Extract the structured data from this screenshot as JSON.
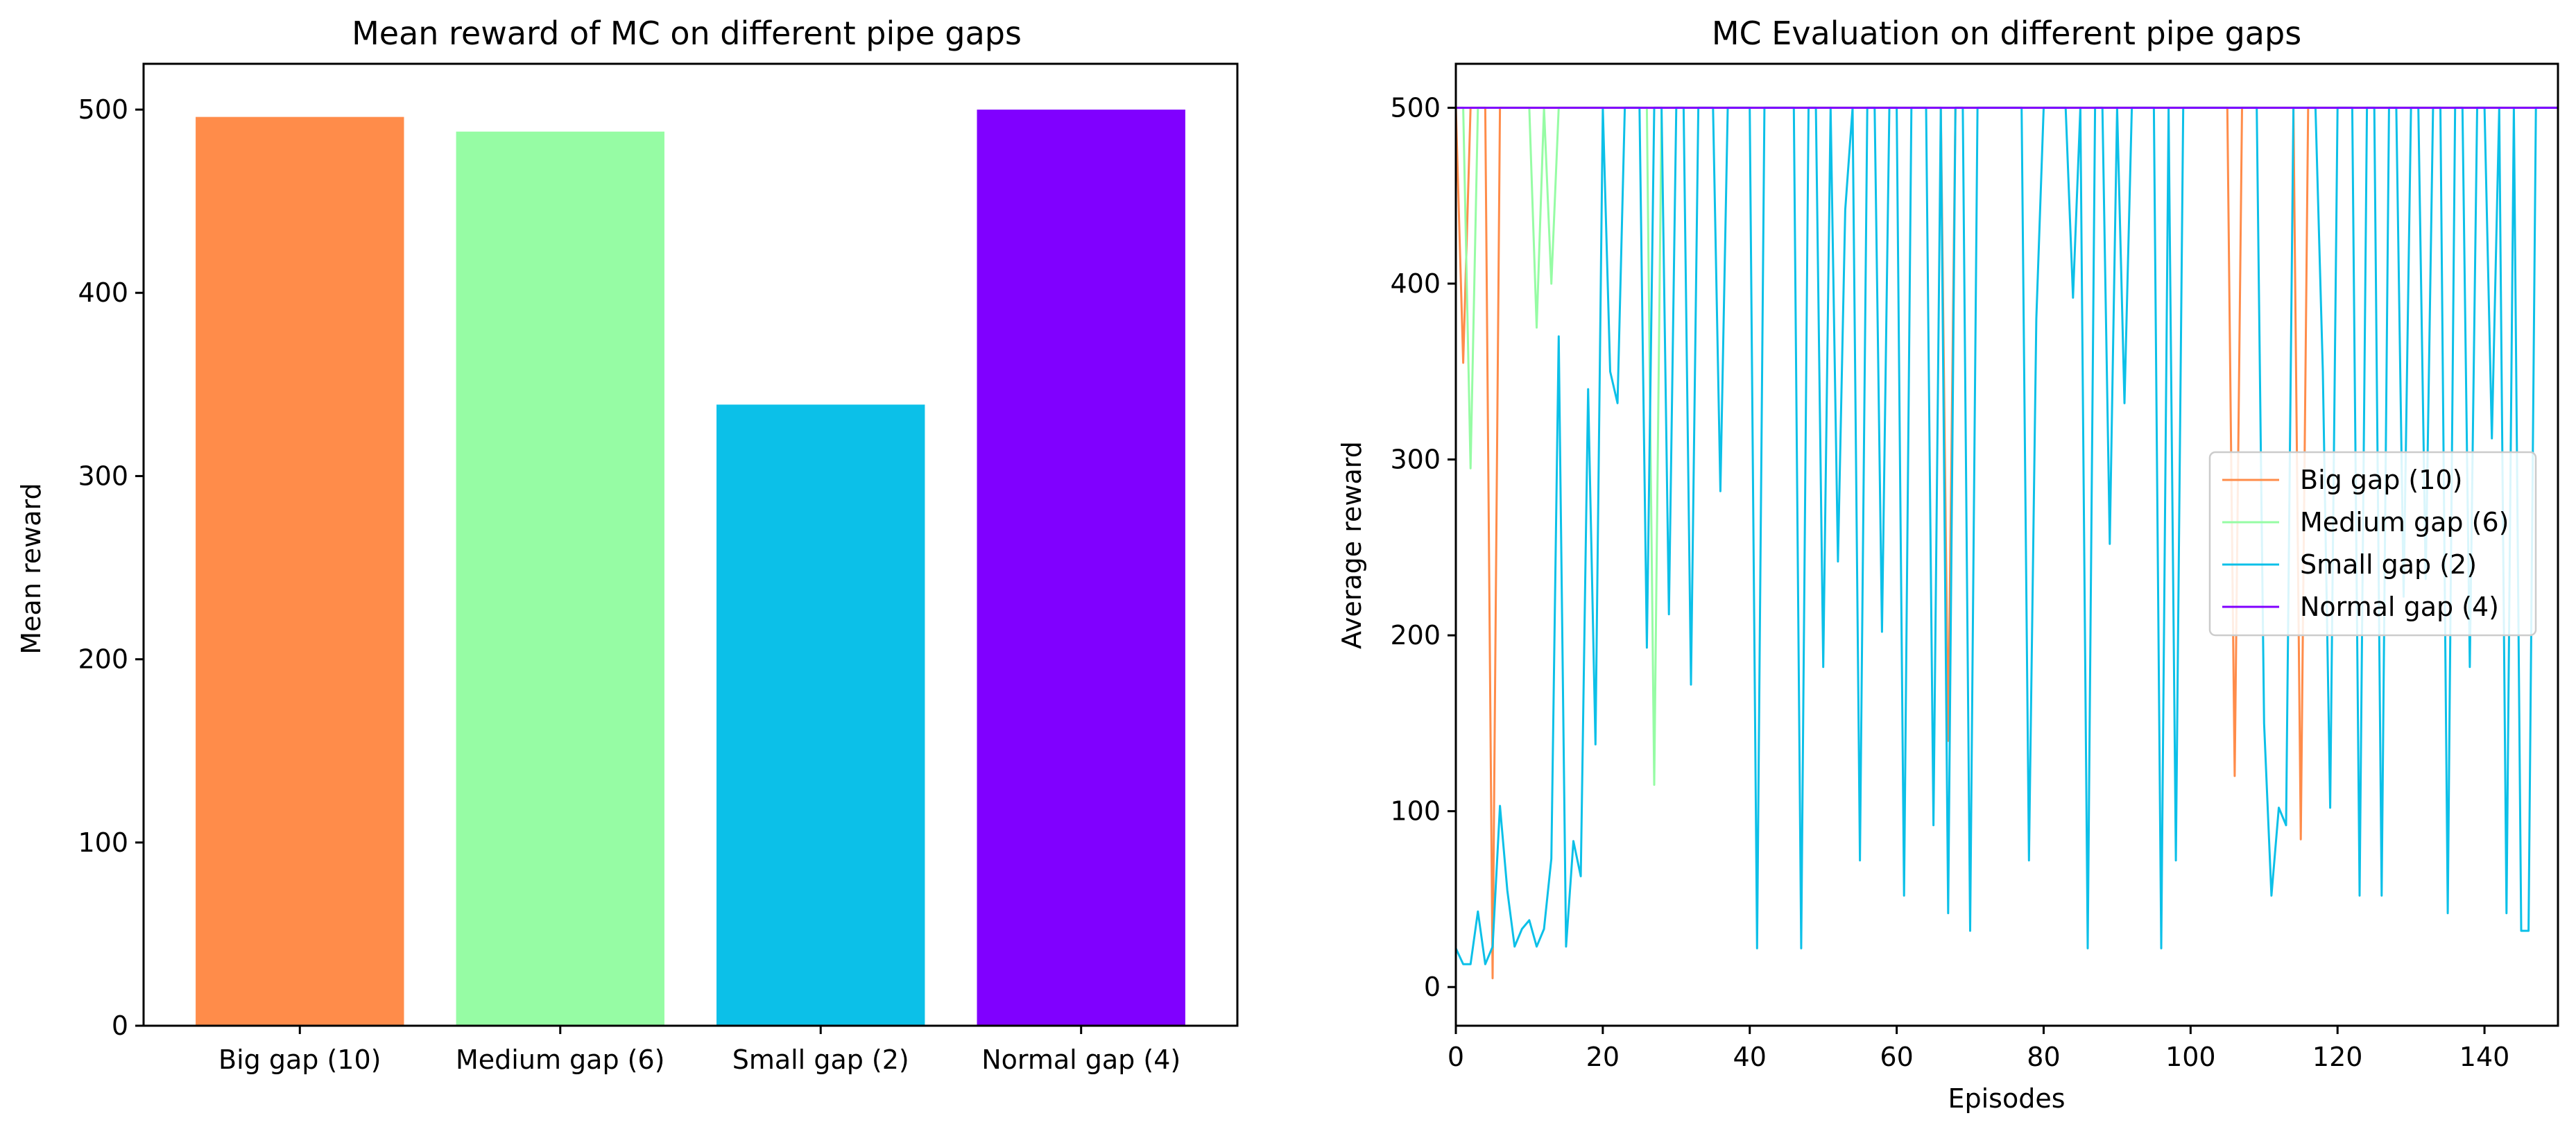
{
  "chart_data": [
    {
      "type": "bar",
      "title": "Mean reward of MC on different pipe gaps",
      "xlabel": "",
      "ylabel": "Mean reward",
      "ylim": [
        0,
        525
      ],
      "yticks": [
        0,
        100,
        200,
        300,
        400,
        500
      ],
      "categories": [
        "Big gap (10)",
        "Medium gap (6)",
        "Small gap (2)",
        "Normal gap (4)"
      ],
      "values": [
        496,
        488,
        339,
        500
      ],
      "colors": [
        "#ff8c4a",
        "#96fca4",
        "#0cc0e8",
        "#8000ff"
      ],
      "grid": false
    },
    {
      "type": "line",
      "title": "MC Evaluation on different pipe gaps",
      "xlabel": "Episodes",
      "ylabel": "Average reward",
      "xlim": [
        0,
        150
      ],
      "ylim": [
        -22,
        525
      ],
      "xticks": [
        0,
        20,
        40,
        60,
        80,
        100,
        120,
        140
      ],
      "yticks": [
        0,
        100,
        200,
        300,
        400,
        500
      ],
      "legend": "center-right",
      "grid": false,
      "series": [
        {
          "name": "Big gap (10)",
          "color": "#ff8c4a",
          "x": [
            0,
            1,
            2,
            3,
            4,
            5,
            6,
            7,
            66,
            67,
            68,
            105,
            106,
            107,
            114,
            115,
            116,
            150
          ],
          "y": [
            500,
            355,
            500,
            500,
            500,
            5,
            500,
            500,
            500,
            140,
            500,
            500,
            120,
            500,
            500,
            84,
            500,
            500
          ]
        },
        {
          "name": "Medium gap (6)",
          "color": "#96fca4",
          "x": [
            0,
            1,
            2,
            3,
            4,
            9,
            10,
            11,
            12,
            13,
            14,
            15,
            16,
            26,
            27,
            28,
            150
          ],
          "y": [
            500,
            500,
            295,
            500,
            500,
            500,
            500,
            375,
            500,
            400,
            500,
            500,
            500,
            500,
            115,
            500,
            500
          ]
        },
        {
          "name": "Small gap (2)",
          "color": "#0cc0e8",
          "x": [
            0,
            1,
            2,
            3,
            4,
            5,
            6,
            7,
            8,
            9,
            10,
            11,
            12,
            13,
            14,
            15,
            16,
            17,
            18,
            19,
            20,
            21,
            22,
            23,
            24,
            25,
            26,
            27,
            28,
            29,
            30,
            31,
            32,
            33,
            34,
            35,
            36,
            37,
            38,
            39,
            40,
            41,
            42,
            43,
            44,
            45,
            46,
            47,
            48,
            49,
            50,
            51,
            52,
            53,
            54,
            55,
            56,
            57,
            58,
            59,
            60,
            61,
            62,
            63,
            64,
            65,
            66,
            67,
            68,
            69,
            70,
            71,
            72,
            73,
            74,
            75,
            76,
            77,
            78,
            79,
            80,
            81,
            82,
            83,
            84,
            85,
            86,
            87,
            88,
            89,
            90,
            91,
            92,
            93,
            94,
            95,
            96,
            97,
            98,
            99,
            100,
            101,
            102,
            103,
            104,
            105,
            106,
            107,
            108,
            109,
            110,
            111,
            112,
            113,
            114,
            115,
            116,
            117,
            118,
            119,
            120,
            121,
            122,
            123,
            124,
            125,
            126,
            127,
            128,
            129,
            130,
            131,
            132,
            133,
            134,
            135,
            136,
            137,
            138,
            139,
            140,
            141,
            142,
            143,
            144,
            145,
            146,
            147,
            148,
            149,
            150
          ],
          "y": [
            22,
            13,
            13,
            43,
            13,
            23,
            103,
            55,
            23,
            33,
            38,
            23,
            33,
            73,
            370,
            23,
            83,
            63,
            340,
            138,
            500,
            350,
            332,
            500,
            500,
            500,
            193,
            500,
            500,
            212,
            500,
            500,
            172,
            500,
            500,
            500,
            282,
            500,
            500,
            500,
            500,
            22,
            500,
            500,
            500,
            500,
            500,
            22,
            500,
            500,
            182,
            500,
            242,
            442,
            500,
            72,
            500,
            500,
            202,
            500,
            500,
            52,
            500,
            500,
            500,
            92,
            500,
            42,
            500,
            500,
            32,
            500,
            500,
            500,
            500,
            500,
            500,
            500,
            72,
            380,
            500,
            500,
            500,
            500,
            392,
            500,
            22,
            500,
            500,
            252,
            500,
            332,
            500,
            500,
            500,
            500,
            22,
            500,
            72,
            500,
            500,
            500,
            500,
            500,
            500,
            500,
            500,
            500,
            500,
            500,
            150,
            52,
            102,
            92,
            500,
            500,
            500,
            500,
            350,
            102,
            500,
            500,
            500,
            52,
            500,
            500,
            52,
            500,
            500,
            222,
            500,
            500,
            232,
            500,
            500,
            42,
            500,
            500,
            182,
            500,
            500,
            312,
            500,
            42,
            500,
            32,
            32,
            500,
            500,
            500,
            500
          ],
          "note_x_cap": 150
        },
        {
          "name": "Normal gap (4)",
          "color": "#8000ff",
          "x": [
            0,
            150
          ],
          "y": [
            500,
            500
          ]
        }
      ]
    }
  ]
}
